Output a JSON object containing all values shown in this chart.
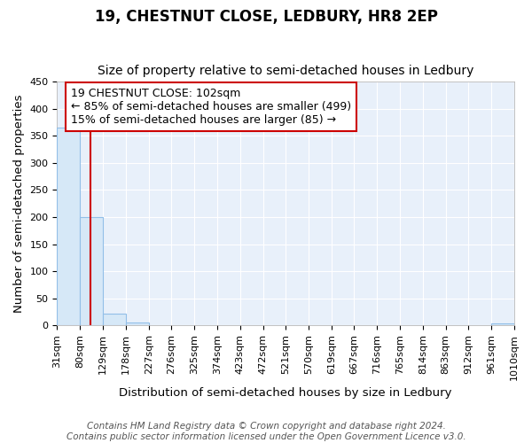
{
  "title": "19, CHESTNUT CLOSE, LEDBURY, HR8 2EP",
  "subtitle": "Size of property relative to semi-detached houses in Ledbury",
  "xlabel": "Distribution of semi-detached houses by size in Ledbury",
  "ylabel": "Number of semi-detached properties",
  "bin_edges": [
    31,
    80,
    129,
    178,
    227,
    276,
    325,
    374,
    423,
    472,
    521,
    570,
    619,
    667,
    716,
    765,
    814,
    863,
    912,
    961,
    1010
  ],
  "bar_heights": [
    365,
    200,
    22,
    5,
    0,
    0,
    0,
    0,
    0,
    0,
    0,
    0,
    0,
    0,
    0,
    0,
    0,
    0,
    0,
    3
  ],
  "bar_color": "#d6e8f7",
  "bar_edge_color": "#92bfe8",
  "property_size": 102,
  "red_line_color": "#cc0000",
  "annotation_line1": "19 CHESTNUT CLOSE: 102sqm",
  "annotation_line2": "← 85% of semi-detached houses are smaller (499)",
  "annotation_line3": "15% of semi-detached houses are larger (85) →",
  "annotation_box_color": "#ffffff",
  "annotation_box_edge": "#cc0000",
  "ylim": [
    0,
    450
  ],
  "yticks": [
    0,
    50,
    100,
    150,
    200,
    250,
    300,
    350,
    400,
    450
  ],
  "footer_text": "Contains HM Land Registry data © Crown copyright and database right 2024.\nContains public sector information licensed under the Open Government Licence v3.0.",
  "background_color": "#ffffff",
  "plot_bg_color": "#e8f0fa",
  "grid_color": "#ffffff",
  "title_fontsize": 12,
  "subtitle_fontsize": 10,
  "axis_label_fontsize": 9.5,
  "tick_fontsize": 8,
  "footer_fontsize": 7.5,
  "annotation_fontsize": 9
}
